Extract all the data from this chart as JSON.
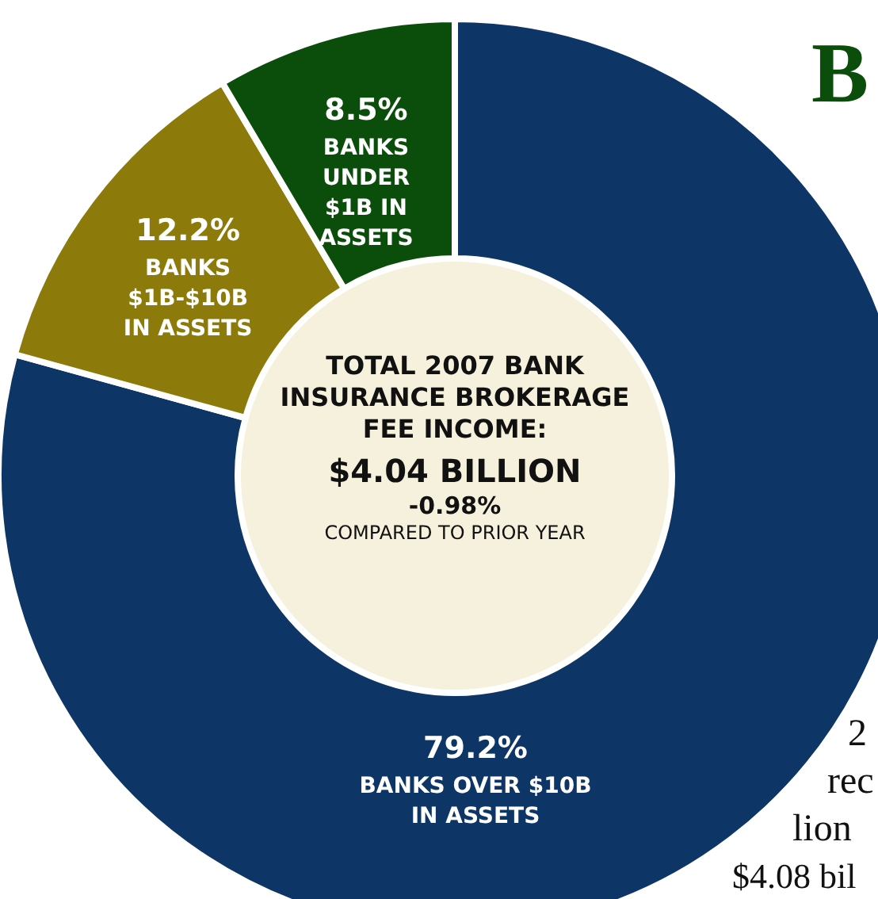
{
  "chart_data": {
    "type": "donut",
    "title": "TOTAL 2007 BANK INSURANCE BROKERAGE FEE INCOME:",
    "subtitle": "$4.04 BILLION",
    "categories": [
      "BANKS OVER $10B IN ASSETS",
      "BANKS $1B-$10B IN ASSETS",
      "BANKS UNDER $1B IN ASSETS"
    ],
    "values": [
      79.2,
      12.2,
      8.5
    ],
    "value_labels": [
      "79.2%",
      "12.2%",
      "8.5%"
    ],
    "colors": [
      "#0d3566",
      "#8c7a0a",
      "#0b4d0b"
    ],
    "annotations": [
      "-0.98%",
      "COMPARED TO PRIOR YEAR",
      "B",
      "2",
      "rec",
      "lion",
      "$4.08 bil"
    ]
  }
}
